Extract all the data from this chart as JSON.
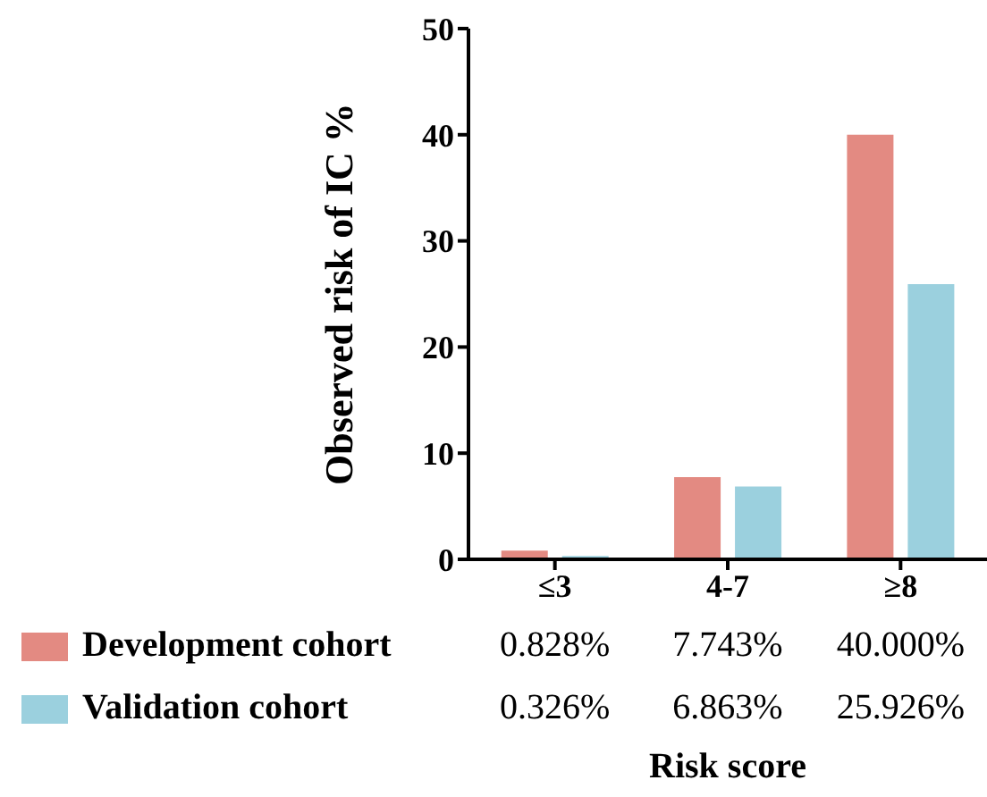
{
  "chart_data": {
    "type": "bar",
    "xlabel": "Risk score",
    "ylabel": "Observed risk of IC %",
    "categories": [
      "≤3",
      "4-7",
      "≥8"
    ],
    "series": [
      {
        "name": "Development cohort",
        "color": "#e38a82",
        "values": [
          0.828,
          7.743,
          40.0
        ],
        "value_labels": [
          "0.828%",
          "7.743%",
          "40.000%"
        ]
      },
      {
        "name": "Validation cohort",
        "color": "#9bd0de",
        "values": [
          0.326,
          6.863,
          25.926
        ],
        "value_labels": [
          "0.326%",
          "6.863%",
          "25.926%"
        ]
      }
    ],
    "ylim": [
      0,
      50
    ],
    "yticks": [
      0,
      10,
      20,
      30,
      40,
      50
    ],
    "legend": "bottom"
  }
}
